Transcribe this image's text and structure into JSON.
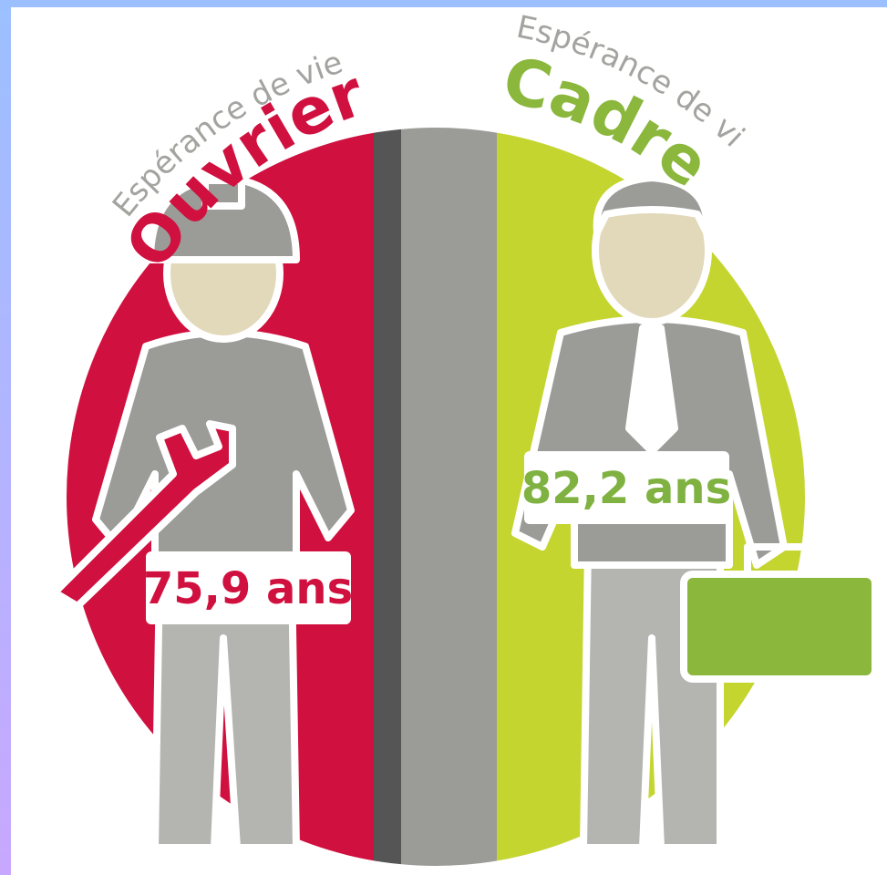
{
  "left": {
    "subtitle": "Espérance de vie",
    "title": "Ouvriers",
    "label": "75,9 ans"
  },
  "right": {
    "subtitle": "Espérance de vie",
    "title": "Cadres",
    "label": "82,2 ans"
  }
}
